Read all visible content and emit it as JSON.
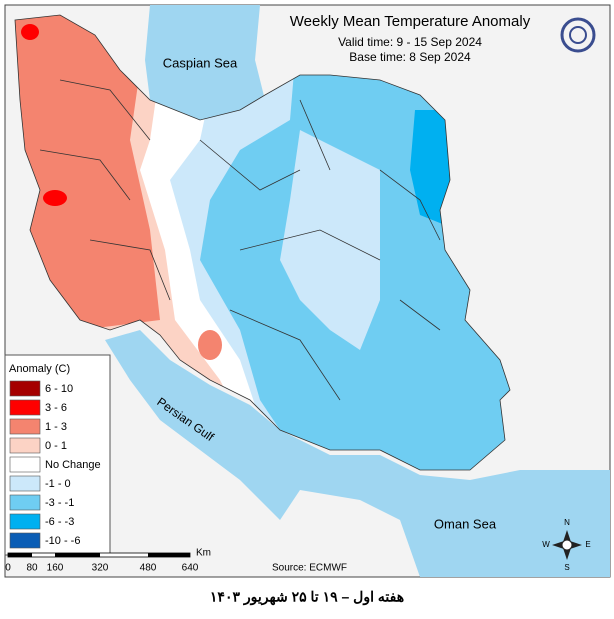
{
  "header": {
    "title": "Weekly Mean Temperature Anomaly",
    "valid_time": "Valid time: 9 - 15 Sep 2024",
    "base_time": "Base time: 8 Sep 2024"
  },
  "legend": {
    "title": "Anomaly (C)",
    "items": [
      {
        "label": "6 - 10",
        "color": "#a50000"
      },
      {
        "label": "3 - 6",
        "color": "#ff0000"
      },
      {
        "label": "1 - 3",
        "color": "#f4846f"
      },
      {
        "label": "0 - 1",
        "color": "#fcd3c5"
      },
      {
        "label": "No Change",
        "color": "#ffffff"
      },
      {
        "label": "-1 - 0",
        "color": "#cce8fa"
      },
      {
        "label": "-3 - -1",
        "color": "#6fcdf2"
      },
      {
        "label": "-6 - -3",
        "color": "#00b0f0"
      },
      {
        "label": "-10 - -6",
        "color": "#0a5db5"
      }
    ]
  },
  "labels": {
    "caspian": "Caspian Sea",
    "gulf": "Persian Gulf",
    "oman": "Oman Sea"
  },
  "scale": {
    "ticks": [
      "0",
      "80",
      "160",
      "320",
      "480",
      "640"
    ],
    "unit": "Km"
  },
  "source": "Source: ECMWF",
  "compass": {
    "n": "N",
    "s": "S",
    "e": "E",
    "w": "W"
  },
  "caption": "هفته اول – ۱۹ تا ۲۵ شهریور ۱۴۰۳"
}
